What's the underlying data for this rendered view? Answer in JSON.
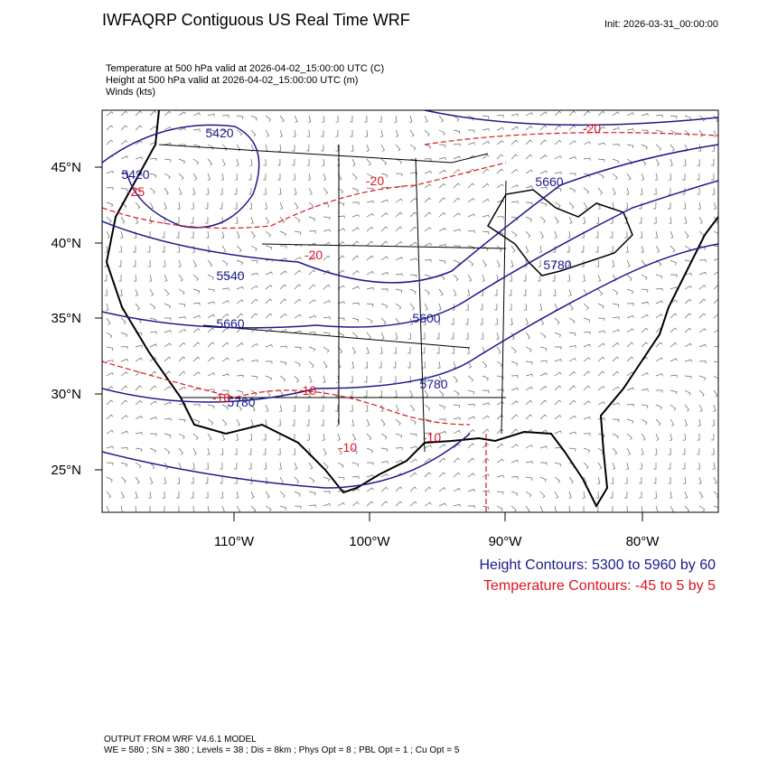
{
  "header": {
    "title": "IWFAQRP Contiguous US Real Time WRF",
    "init": "Init: 2026-03-31_00:00:00"
  },
  "fields": [
    "Temperature at 500 hPa valid at 2026-04-02_15:00:00 UTC   (C)",
    "Height at 500 hPa valid at 2026-04-02_15:00:00 UTC   (m)",
    "Winds   (kts)"
  ],
  "latitude_labels": [
    "45°N",
    "40°N",
    "35°N",
    "30°N",
    "25°N"
  ],
  "longitude_labels": [
    "110°W",
    "100°W",
    "90°W",
    "80°W"
  ],
  "height_contour_labels": [
    "5420",
    "5420",
    "5540",
    "5660",
    "5600",
    "5660",
    "5780",
    "5780",
    "5780"
  ],
  "temperature_contour_labels": [
    "-20",
    "-20",
    "-20",
    "-25",
    "-10",
    "-10",
    "-10",
    "-10"
  ],
  "legend": {
    "height": "Height Contours: 5300 to 5960 by 60",
    "temperature": "Temperature Contours: -45 to 5 by 5"
  },
  "footer": [
    "OUTPUT FROM WRF V4.6.1 MODEL",
    "WE = 580 ; SN = 380 ; Levels = 38 ; Dis = 8km ; Phys Opt = 8 ; PBL Opt = 1 ; Cu Opt = 5"
  ]
}
